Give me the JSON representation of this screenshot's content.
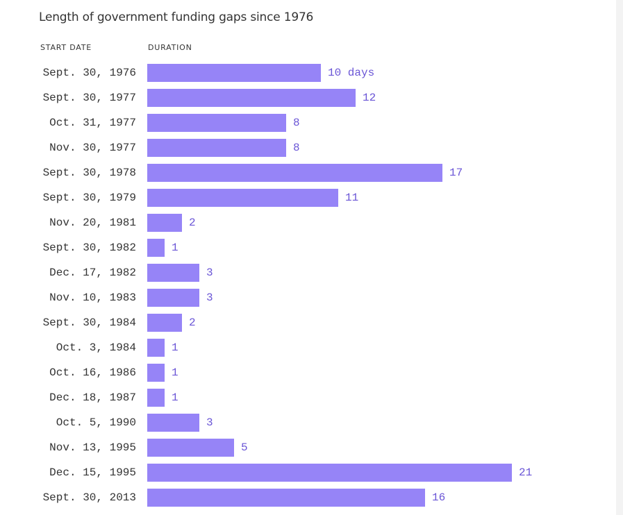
{
  "title": "Length of government funding gaps since 1976",
  "headers": {
    "start_date": "START DATE",
    "duration": "DURATION"
  },
  "colors": {
    "bar": "#9684f7",
    "value_text": "#6a55d6",
    "text": "#333333"
  },
  "chart_data": {
    "type": "bar",
    "orientation": "horizontal",
    "title": "Length of government funding gaps since 1976",
    "xlabel": "DURATION",
    "ylabel": "START DATE",
    "unit_first_label": "days",
    "categories": [
      "Sept. 30, 1976",
      "Sept. 30, 1977",
      "Oct. 31, 1977",
      "Nov. 30, 1977",
      "Sept. 30, 1978",
      "Sept. 30, 1979",
      "Nov. 20, 1981",
      "Sept. 30, 1982",
      "Dec. 17, 1982",
      "Nov. 10, 1983",
      "Sept. 30, 1984",
      "Oct. 3, 1984",
      "Oct. 16, 1986",
      "Dec. 18, 1987",
      "Oct. 5, 1990",
      "Nov. 13, 1995",
      "Dec. 15, 1995",
      "Sept. 30, 2013"
    ],
    "values": [
      10,
      12,
      8,
      8,
      17,
      11,
      2,
      1,
      3,
      3,
      2,
      1,
      1,
      1,
      3,
      5,
      21,
      16
    ],
    "value_labels": [
      "10 days",
      "12",
      "8",
      "8",
      "17",
      "11",
      "2",
      "1",
      "3",
      "3",
      "2",
      "1",
      "1",
      "1",
      "3",
      "5",
      "21",
      "16"
    ],
    "xlim": [
      0,
      21
    ],
    "grid": false,
    "legend": "none"
  }
}
